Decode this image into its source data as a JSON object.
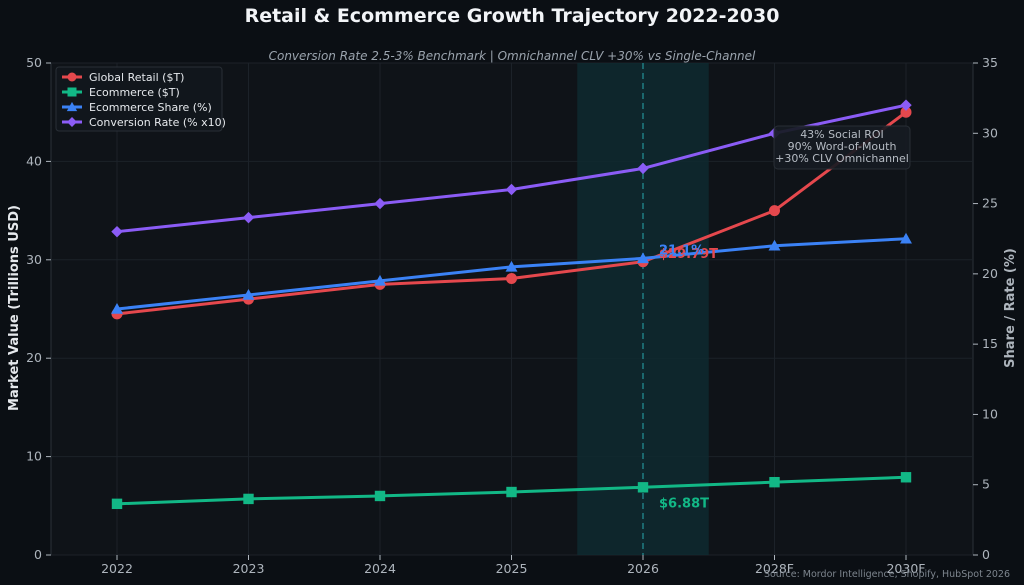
{
  "chart_data": {
    "type": "line",
    "title": "Retail & Ecommerce Growth Trajectory 2022-2030",
    "subtitle": "Conversion Rate 2.5-3% Benchmark | Omnichannel CLV +30% vs Single-Channel",
    "categories": [
      "2022",
      "2023",
      "2024",
      "2025",
      "2026",
      "2028F",
      "2030F"
    ],
    "ylabel_left": "Market Value (Trillions USD)",
    "ylabel_right": "Share / Rate (%)",
    "ylim_left": [
      0,
      50
    ],
    "ylim_right": [
      0,
      35
    ],
    "yticks_left": [
      0,
      10,
      20,
      30,
      40,
      50
    ],
    "yticks_right": [
      0,
      5,
      10,
      15,
      20,
      25,
      30,
      35
    ],
    "grid": true,
    "legend_position": "top-left",
    "highlight_category": "2026",
    "series": [
      {
        "name": "Global Retail ($T)",
        "axis": "left",
        "marker": "circle",
        "color": "#e5484d",
        "values": [
          24.5,
          26.0,
          27.5,
          28.1,
          29.8,
          35.0,
          45.0
        ]
      },
      {
        "name": "Ecommerce ($T)",
        "axis": "left",
        "marker": "square",
        "color": "#12b886",
        "values": [
          5.2,
          5.7,
          6.0,
          6.4,
          6.88,
          7.4,
          7.9
        ]
      },
      {
        "name": "Ecommerce Share (%)",
        "axis": "right",
        "marker": "triangle",
        "color": "#3b82f6",
        "values": [
          17.5,
          18.5,
          19.5,
          20.5,
          21.1,
          22.0,
          22.5
        ]
      },
      {
        "name": "Conversion Rate (% x10)",
        "axis": "right",
        "marker": "diamond",
        "color": "#8b5cf6",
        "values": [
          23.0,
          24.0,
          25.0,
          26.0,
          27.5,
          30.0,
          32.0
        ]
      }
    ],
    "data_labels": [
      {
        "text": "$29.79T",
        "series": 0,
        "category": "2026",
        "color": "#e5484d"
      },
      {
        "text": "21.1%",
        "series": 2,
        "category": "2026",
        "color": "#3b82f6"
      },
      {
        "text": "$6.88T",
        "series": 1,
        "category": "2026",
        "color": "#12b886"
      }
    ],
    "annotation_lines": [
      "43% Social ROI",
      "90% Word-of-Mouth",
      "+30% CLV Omnichannel"
    ],
    "source": "Source: Mordor Intelligence, Shopify, HubSpot 2026"
  }
}
